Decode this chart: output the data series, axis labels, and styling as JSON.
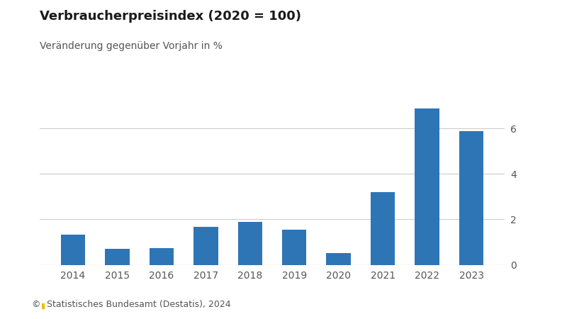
{
  "title": "Verbraucherpreisindex (2020 = 100)",
  "subtitle": "Veränderung gegenüber Vorjahr in %",
  "years": [
    "2014",
    "2015",
    "2016",
    "2017",
    "2018",
    "2019",
    "2020",
    "2021",
    "2022",
    "2023"
  ],
  "values": [
    1.33,
    0.71,
    0.72,
    1.68,
    1.88,
    1.53,
    0.51,
    3.19,
    6.88,
    5.87
  ],
  "bar_color": "#2E75B6",
  "background_color": "#FFFFFF",
  "yticks": [
    0,
    2,
    4,
    6
  ],
  "ylim": [
    0,
    8.0
  ],
  "footer": "©▮ Statistisches Bundesamt (Destatis), 2024",
  "title_fontsize": 13,
  "subtitle_fontsize": 10,
  "tick_fontsize": 10,
  "footer_fontsize": 9,
  "grid_color": "#CCCCCC",
  "tick_color": "#555555",
  "title_color": "#1a1a1a",
  "subtitle_color": "#555555"
}
